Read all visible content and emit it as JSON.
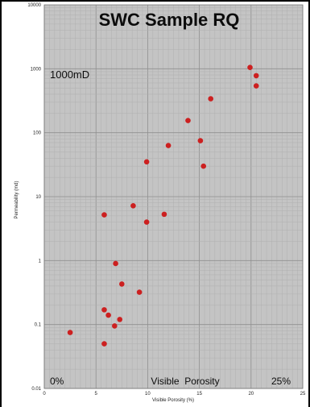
{
  "chart_data": {
    "type": "scatter",
    "title": "SWC Sample RQ",
    "xlabel": "Visible Porosity (%)",
    "ylabel": "Permeability (md)",
    "xlim": [
      0,
      25
    ],
    "ylim": [
      0.01,
      10000
    ],
    "y_scale": "log",
    "grid": true,
    "x_ticks": [
      "0",
      "5",
      "10",
      "15",
      "20",
      "25"
    ],
    "y_ticks": [
      "0.01",
      "0.1",
      "1",
      "10",
      "100",
      "1000",
      "10000"
    ],
    "annotations": {
      "permeability_marker": "1000mD",
      "porosity_min": "0%",
      "porosity_label": "Visible  Porosity",
      "porosity_max": "25%"
    },
    "marker_color": "#cc2020",
    "background_color": "#c4c4c4",
    "points": [
      {
        "x": 2.5,
        "y": 0.075
      },
      {
        "x": 5.8,
        "y": 0.05
      },
      {
        "x": 5.8,
        "y": 0.17
      },
      {
        "x": 6.2,
        "y": 0.14
      },
      {
        "x": 6.8,
        "y": 0.095
      },
      {
        "x": 7.3,
        "y": 0.12
      },
      {
        "x": 6.9,
        "y": 0.9
      },
      {
        "x": 7.5,
        "y": 0.43
      },
      {
        "x": 9.2,
        "y": 0.32
      },
      {
        "x": 5.8,
        "y": 5.2
      },
      {
        "x": 8.6,
        "y": 7.2
      },
      {
        "x": 9.9,
        "y": 4
      },
      {
        "x": 11.6,
        "y": 5.3
      },
      {
        "x": 9.9,
        "y": 35
      },
      {
        "x": 12.0,
        "y": 63
      },
      {
        "x": 13.9,
        "y": 155
      },
      {
        "x": 15.1,
        "y": 75
      },
      {
        "x": 15.4,
        "y": 30
      },
      {
        "x": 16.1,
        "y": 340
      },
      {
        "x": 19.9,
        "y": 1050
      },
      {
        "x": 20.5,
        "y": 780
      },
      {
        "x": 20.5,
        "y": 540
      }
    ]
  }
}
